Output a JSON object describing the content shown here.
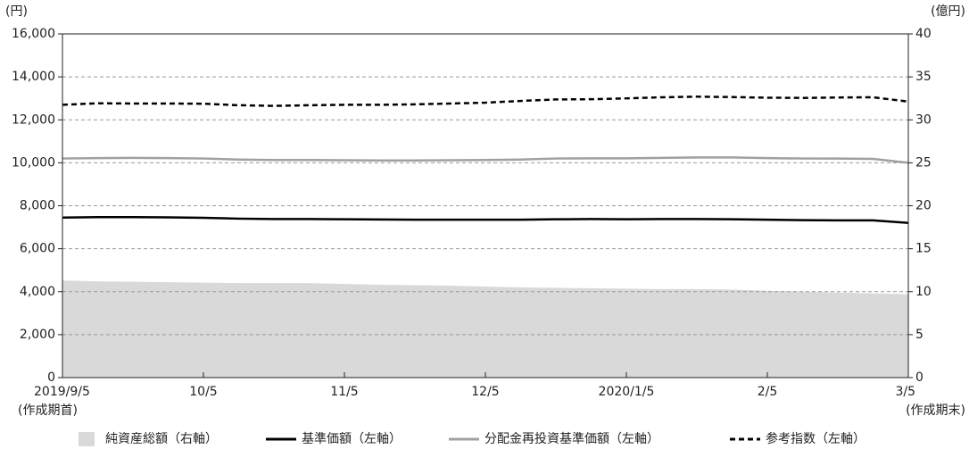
{
  "chart_data": {
    "type": "line",
    "y_label": "(円)",
    "y2_label": "(億円)",
    "annotations": [
      "(作成期首)",
      "(作成期末)"
    ],
    "categories": [
      "2019/9/5",
      null,
      null,
      null,
      "10/5",
      null,
      null,
      null,
      "11/5",
      null,
      null,
      null,
      "12/5",
      null,
      null,
      null,
      "2020/1/5",
      null,
      null,
      null,
      "2/5",
      null,
      null,
      null,
      "3/5"
    ],
    "series": [
      {
        "name": "純資産総額（右軸）",
        "color": "#d9d9d9",
        "style": "area",
        "axis": "y2",
        "values": [
          11.3,
          11.2,
          11.15,
          11.1,
          11.05,
          11.0,
          11.0,
          11.0,
          10.9,
          10.8,
          10.75,
          10.7,
          10.6,
          10.5,
          10.45,
          10.4,
          10.35,
          10.3,
          10.3,
          10.25,
          10.1,
          10.0,
          9.9,
          9.8,
          9.7
        ]
      },
      {
        "name": "基準価額（左軸）",
        "color": "#000000",
        "style": "solid",
        "values": [
          7450,
          7470,
          7470,
          7460,
          7440,
          7400,
          7380,
          7380,
          7370,
          7360,
          7350,
          7350,
          7350,
          7350,
          7370,
          7380,
          7370,
          7380,
          7380,
          7370,
          7350,
          7330,
          7320,
          7320,
          7200
        ]
      },
      {
        "name": "分配金再投資基準価額（左軸）",
        "color": "#a0a0a0",
        "style": "solid",
        "values": [
          10200,
          10220,
          10230,
          10220,
          10200,
          10150,
          10130,
          10130,
          10120,
          10110,
          10110,
          10120,
          10130,
          10150,
          10200,
          10210,
          10210,
          10230,
          10250,
          10250,
          10220,
          10200,
          10200,
          10180,
          10000
        ]
      },
      {
        "name": "参考指数（左軸）",
        "color": "#000000",
        "style": "dashed",
        "values": [
          12700,
          12770,
          12760,
          12760,
          12750,
          12680,
          12650,
          12680,
          12700,
          12700,
          12720,
          12760,
          12800,
          12880,
          12950,
          12960,
          13000,
          13050,
          13080,
          13060,
          13030,
          13020,
          13040,
          13050,
          12850
        ]
      }
    ],
    "ylim": [
      0,
      16000
    ],
    "yticks": [
      0,
      {
        "value": 2000,
        "label": "2,000"
      },
      {
        "value": 4000,
        "label": "4,000"
      },
      {
        "value": 6000,
        "label": "6,000"
      },
      {
        "value": 8000,
        "label": "8,000"
      },
      {
        "value": 10000,
        "label": "10,000"
      },
      {
        "value": 12000,
        "label": "12,000"
      },
      {
        "value": 14000,
        "label": "14,000"
      },
      {
        "value": 16000,
        "label": "16,000"
      }
    ],
    "y2lim": [
      0,
      40
    ],
    "y2ticks": [
      0,
      5,
      10,
      15,
      20,
      25,
      30,
      35,
      40
    ],
    "grid": true
  }
}
